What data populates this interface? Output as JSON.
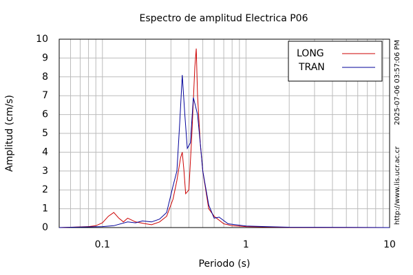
{
  "chart_data": {
    "type": "line",
    "title": "Espectro de amplitud Electrica P06",
    "xlabel": "Periodo (s)",
    "ylabel": "Amplitud (cm/s)",
    "side_texts": [
      "2025-07-06 03:57:06 PM",
      "http://www.lis.ucr.ac.cr"
    ],
    "xscale": "log",
    "xlim": [
      0.05,
      10
    ],
    "ylim": [
      0,
      10
    ],
    "xticks": [
      0.1,
      1,
      10
    ],
    "xminorticks": [
      0.06,
      0.07,
      0.08,
      0.09,
      0.2,
      0.3,
      0.4,
      0.5,
      0.6,
      0.7,
      0.8,
      0.9,
      2,
      3,
      4,
      5,
      6,
      7,
      8,
      9
    ],
    "yticks": [
      0,
      1,
      2,
      3,
      4,
      5,
      6,
      7,
      8,
      9,
      10
    ],
    "grid": true,
    "legend": "upper right",
    "series": [
      {
        "name": "LONG",
        "color": "#cc0000",
        "x": [
          0.05,
          0.06,
          0.08,
          0.09,
          0.1,
          0.11,
          0.12,
          0.13,
          0.14,
          0.15,
          0.17,
          0.2,
          0.22,
          0.25,
          0.28,
          0.31,
          0.33,
          0.35,
          0.36,
          0.37,
          0.38,
          0.39,
          0.4,
          0.42,
          0.44,
          0.45,
          0.46,
          0.48,
          0.5,
          0.55,
          0.6,
          0.7,
          0.8,
          1,
          2,
          10
        ],
        "values": [
          0,
          0.02,
          0.05,
          0.1,
          0.25,
          0.6,
          0.8,
          0.5,
          0.3,
          0.5,
          0.3,
          0.2,
          0.15,
          0.3,
          0.6,
          1.5,
          2.5,
          3.7,
          4.0,
          3.0,
          1.8,
          1.9,
          2.0,
          5.0,
          8.5,
          9.5,
          7.0,
          4.5,
          3.0,
          1.0,
          0.6,
          0.2,
          0.1,
          0.05,
          0.01,
          0
        ]
      },
      {
        "name": "TRAN",
        "color": "#000099",
        "x": [
          0.05,
          0.07,
          0.1,
          0.12,
          0.15,
          0.17,
          0.19,
          0.22,
          0.25,
          0.28,
          0.31,
          0.33,
          0.345,
          0.36,
          0.375,
          0.39,
          0.41,
          0.43,
          0.44,
          0.46,
          0.48,
          0.5,
          0.55,
          0.6,
          0.65,
          0.75,
          1,
          2,
          10
        ],
        "values": [
          0,
          0.03,
          0.05,
          0.1,
          0.3,
          0.25,
          0.35,
          0.3,
          0.45,
          0.8,
          2.2,
          3.0,
          5.5,
          8.1,
          6.0,
          4.2,
          4.5,
          6.9,
          6.6,
          6.0,
          4.5,
          3.0,
          1.2,
          0.5,
          0.55,
          0.2,
          0.08,
          0.02,
          0
        ]
      }
    ]
  }
}
